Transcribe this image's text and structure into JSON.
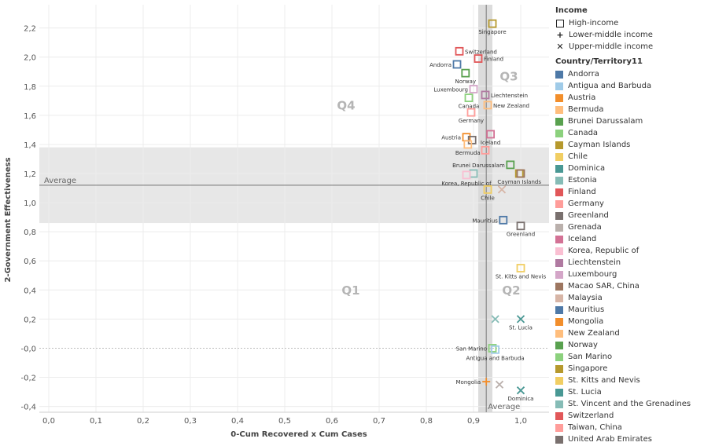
{
  "chart_data": {
    "type": "scatter",
    "xlabel": "0-Cum Recovered x Cum Cases",
    "ylabel": "2-Government Effectiveness",
    "xlim": [
      -0.02,
      1.06
    ],
    "ylim": [
      -0.44,
      2.36
    ],
    "x_ticks": [
      "0,0",
      "0,1",
      "0,2",
      "0,3",
      "0,4",
      "0,5",
      "0,6",
      "0,7",
      "0,8",
      "0,9",
      "1,0"
    ],
    "y_ticks": [
      "-0,4",
      "-0,2",
      "-0,0",
      "0,2",
      "0,4",
      "0,6",
      "0,8",
      "1,0",
      "1,2",
      "1,4",
      "1,6",
      "1,8",
      "2,0",
      "2,2"
    ],
    "grid": true,
    "reference_lines": {
      "y_average": 1.12,
      "y_average_label": "Average",
      "y_band": [
        0.86,
        1.38
      ],
      "x_average": 0.927,
      "x_average_label": "Average",
      "x_band": [
        0.91,
        0.94
      ]
    },
    "quadrant_labels": [
      {
        "text": "Q4",
        "x": 0.63,
        "y": 1.64
      },
      {
        "text": "Q3",
        "x": 0.975,
        "y": 1.84
      },
      {
        "text": "Q1",
        "x": 0.64,
        "y": 0.37
      },
      {
        "text": "Q2",
        "x": 0.98,
        "y": 0.37
      }
    ],
    "legend_title_shape": "Income",
    "legend_shapes": [
      {
        "label": "High-income",
        "marker": "square"
      },
      {
        "label": "Lower-middle income",
        "marker": "plus"
      },
      {
        "label": "Upper-middle income",
        "marker": "cross"
      }
    ],
    "legend_title_color": "Country/Territory11",
    "legend_colors": [
      {
        "label": "Andorra",
        "color": "#4e79a7"
      },
      {
        "label": "Antigua and Barbuda",
        "color": "#a0cbe8"
      },
      {
        "label": "Austria",
        "color": "#f28e2b"
      },
      {
        "label": "Bermuda",
        "color": "#ffbe7d"
      },
      {
        "label": "Brunei Darussalam",
        "color": "#59a14f"
      },
      {
        "label": "Canada",
        "color": "#8cd17d"
      },
      {
        "label": "Cayman Islands",
        "color": "#b6992d"
      },
      {
        "label": "Chile",
        "color": "#f1ce63"
      },
      {
        "label": "Dominica",
        "color": "#499894"
      },
      {
        "label": "Estonia",
        "color": "#86bcb6"
      },
      {
        "label": "Finland",
        "color": "#e15759"
      },
      {
        "label": "Germany",
        "color": "#ff9d9a"
      },
      {
        "label": "Greenland",
        "color": "#79706e"
      },
      {
        "label": "Grenada",
        "color": "#bab0ac"
      },
      {
        "label": "Iceland",
        "color": "#d37295"
      },
      {
        "label": "Korea, Republic of",
        "color": "#fabfd2"
      },
      {
        "label": "Liechtenstein",
        "color": "#b07aa1"
      },
      {
        "label": "Luxembourg",
        "color": "#d4a6c8"
      },
      {
        "label": "Macao SAR, China",
        "color": "#9d7660"
      },
      {
        "label": "Malaysia",
        "color": "#d7b5a6"
      },
      {
        "label": "Mauritius",
        "color": "#4e79a7"
      },
      {
        "label": "Mongolia",
        "color": "#f28e2b"
      },
      {
        "label": "New Zealand",
        "color": "#ffbe7d"
      },
      {
        "label": "Norway",
        "color": "#59a14f"
      },
      {
        "label": "San Marino",
        "color": "#8cd17d"
      },
      {
        "label": "Singapore",
        "color": "#b6992d"
      },
      {
        "label": "St. Kitts and Nevis",
        "color": "#f1ce63"
      },
      {
        "label": "St. Lucia",
        "color": "#499894"
      },
      {
        "label": "St. Vincent and the Grenadines",
        "color": "#86bcb6"
      },
      {
        "label": "Switzerland",
        "color": "#e15759"
      },
      {
        "label": "Taiwan, China",
        "color": "#ff9d9a"
      },
      {
        "label": "United Arab Emirates",
        "color": "#79706e"
      }
    ],
    "points": [
      {
        "country": "Singapore",
        "x": 0.94,
        "y": 2.23,
        "marker": "square",
        "color": "#b6992d",
        "label": "Singapore",
        "label_pos": "below"
      },
      {
        "country": "Switzerland",
        "x": 0.87,
        "y": 2.04,
        "marker": "square",
        "color": "#e15759",
        "label": "Switzerland",
        "label_pos": "right"
      },
      {
        "country": "Finland",
        "x": 0.91,
        "y": 1.99,
        "marker": "square",
        "color": "#e15759",
        "label": "Finland",
        "label_pos": "right"
      },
      {
        "country": "Andorra",
        "x": 0.865,
        "y": 1.95,
        "marker": "square",
        "color": "#4e79a7",
        "label": "Andorra",
        "label_pos": "left"
      },
      {
        "country": "Norway",
        "x": 0.883,
        "y": 1.89,
        "marker": "square",
        "color": "#59a14f",
        "label": "Norway",
        "label_pos": "below"
      },
      {
        "country": "Luxembourg",
        "x": 0.9,
        "y": 1.78,
        "marker": "square",
        "color": "#d4a6c8",
        "label": "Luxembourg",
        "label_pos": "left"
      },
      {
        "country": "Liechtenstein",
        "x": 0.925,
        "y": 1.74,
        "marker": "square",
        "color": "#b07aa1",
        "label": "Liechtenstein",
        "label_pos": "right"
      },
      {
        "country": "Canada",
        "x": 0.89,
        "y": 1.72,
        "marker": "square",
        "color": "#8cd17d",
        "label": "Canada",
        "label_pos": "below"
      },
      {
        "country": "New Zealand",
        "x": 0.93,
        "y": 1.67,
        "marker": "square",
        "color": "#ffbe7d",
        "label": "New Zealand",
        "label_pos": "right"
      },
      {
        "country": "Germany",
        "x": 0.895,
        "y": 1.62,
        "marker": "square",
        "color": "#ff9d9a",
        "label": "Germany",
        "label_pos": "below"
      },
      {
        "country": "Iceland",
        "x": 0.936,
        "y": 1.47,
        "marker": "square",
        "color": "#d37295",
        "label": "Iceland",
        "label_pos": "below"
      },
      {
        "country": "Austria",
        "x": 0.885,
        "y": 1.45,
        "marker": "square",
        "color": "#f28e2b",
        "label": "Austria",
        "label_pos": "left"
      },
      {
        "country": "United Arab Emirates",
        "x": 0.897,
        "y": 1.43,
        "marker": "square",
        "color": "#79706e",
        "label": "",
        "label_pos": "none"
      },
      {
        "country": "Bermuda",
        "x": 0.888,
        "y": 1.4,
        "marker": "square",
        "color": "#ffbe7d",
        "label": "Bermuda",
        "label_pos": "below"
      },
      {
        "country": "Taiwan, China",
        "x": 0.925,
        "y": 1.36,
        "marker": "square",
        "color": "#ff9d9a",
        "label": "",
        "label_pos": "none"
      },
      {
        "country": "Brunei Darussalam",
        "x": 0.978,
        "y": 1.26,
        "marker": "square",
        "color": "#59a14f",
        "label": "Brunei Darussalam",
        "label_pos": "left"
      },
      {
        "country": "Estonia",
        "x": 0.9,
        "y": 1.2,
        "marker": "square",
        "color": "#86bcb6",
        "label": "",
        "label_pos": "none"
      },
      {
        "country": "Korea, Republic of",
        "x": 0.885,
        "y": 1.19,
        "marker": "square",
        "color": "#fabfd2",
        "label": "Korea, Republic of",
        "label_pos": "below"
      },
      {
        "country": "Cayman Islands",
        "x": 0.997,
        "y": 1.2,
        "marker": "square",
        "color": "#b6992d",
        "label": "Cayman Islands",
        "label_pos": "below"
      },
      {
        "country": "Macao SAR, China",
        "x": 1.0,
        "y": 1.2,
        "marker": "square",
        "color": "#9d7660",
        "label": "",
        "label_pos": "none"
      },
      {
        "country": "Chile",
        "x": 0.93,
        "y": 1.09,
        "marker": "square",
        "color": "#f1ce63",
        "label": "Chile",
        "label_pos": "below"
      },
      {
        "country": "Malaysia",
        "x": 0.96,
        "y": 1.09,
        "marker": "cross",
        "color": "#d7b5a6",
        "label": "",
        "label_pos": "none"
      },
      {
        "country": "Mauritius",
        "x": 0.963,
        "y": 0.88,
        "marker": "square",
        "color": "#4e79a7",
        "label": "Mauritius",
        "label_pos": "left"
      },
      {
        "country": "Greenland",
        "x": 1.0,
        "y": 0.84,
        "marker": "square",
        "color": "#79706e",
        "label": "Greenland",
        "label_pos": "below"
      },
      {
        "country": "St. Kitts and Nevis",
        "x": 1.0,
        "y": 0.55,
        "marker": "square",
        "color": "#f1ce63",
        "label": "St. Kitts and Nevis",
        "label_pos": "below"
      },
      {
        "country": "St. Vincent and the Grenadines",
        "x": 0.946,
        "y": 0.2,
        "marker": "cross",
        "color": "#86bcb6",
        "label": "",
        "label_pos": "none"
      },
      {
        "country": "St. Lucia",
        "x": 1.0,
        "y": 0.2,
        "marker": "cross",
        "color": "#499894",
        "label": "St. Lucia",
        "label_pos": "below"
      },
      {
        "country": "San Marino",
        "x": 0.94,
        "y": 0.0,
        "marker": "square",
        "color": "#8cd17d",
        "label": "San Marino",
        "label_pos": "left"
      },
      {
        "country": "Antigua and Barbuda",
        "x": 0.946,
        "y": -0.01,
        "marker": "square",
        "color": "#a0cbe8",
        "label": "Antigua and Barbuda",
        "label_pos": "below"
      },
      {
        "country": "Mongolia",
        "x": 0.927,
        "y": -0.23,
        "marker": "plus",
        "color": "#f28e2b",
        "label": "Mongolia",
        "label_pos": "left"
      },
      {
        "country": "Grenada",
        "x": 0.955,
        "y": -0.25,
        "marker": "cross",
        "color": "#bab0ac",
        "label": "",
        "label_pos": "none"
      },
      {
        "country": "Dominica",
        "x": 1.0,
        "y": -0.29,
        "marker": "cross",
        "color": "#499894",
        "label": "Dominica",
        "label_pos": "below"
      }
    ]
  }
}
